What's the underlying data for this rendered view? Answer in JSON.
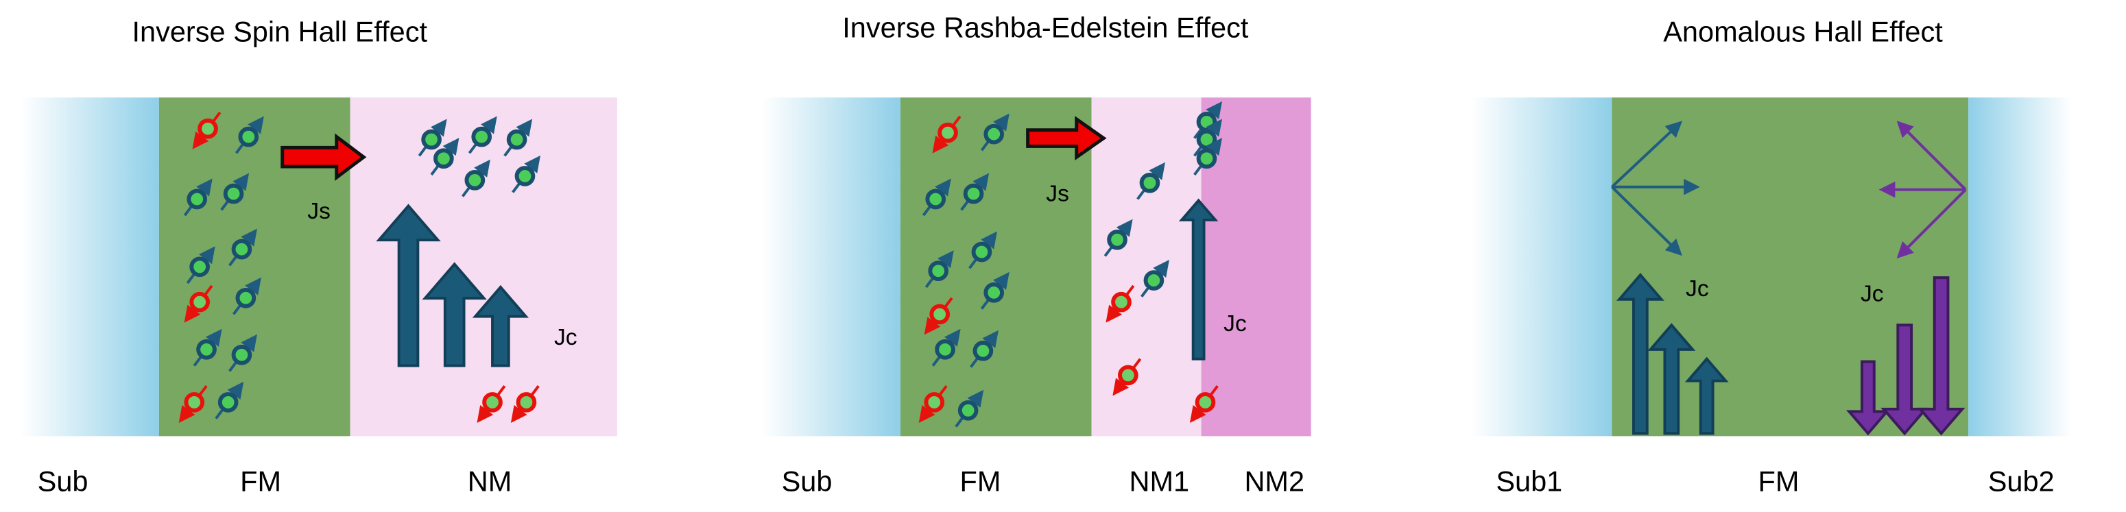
{
  "panels": [
    {
      "title": "Inverse  Spin Hall Effect",
      "regions": [
        "Sub",
        "FM",
        "NM"
      ],
      "notes": [
        "Js",
        "Jc"
      ]
    },
    {
      "title": "Inverse Rashba-Edelstein Effect",
      "regions": [
        "Sub",
        "FM",
        "NM1",
        "NM2"
      ],
      "notes": [
        "Js",
        "Jc"
      ]
    },
    {
      "title": "Anomalous Hall Effect",
      "regions": [
        "Sub1",
        "FM",
        "Sub2"
      ],
      "notes": [
        "Jc",
        "Jc"
      ]
    }
  ]
}
